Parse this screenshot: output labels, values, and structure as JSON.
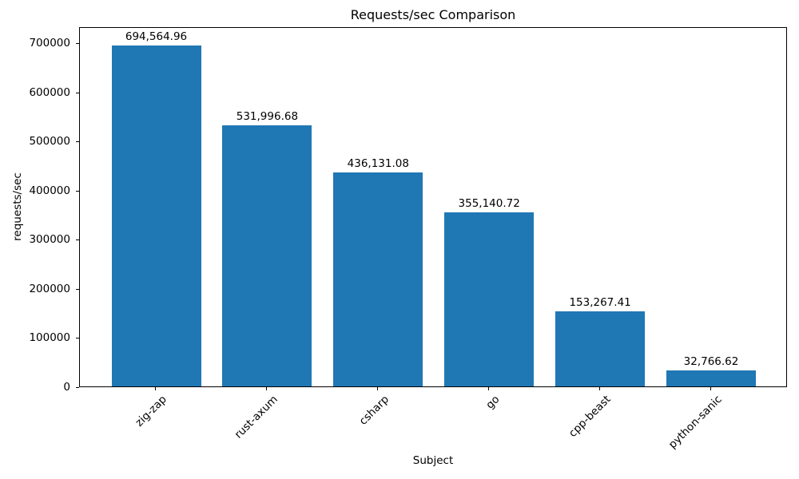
{
  "chart_data": {
    "type": "bar",
    "title": "Requests/sec Comparison",
    "xlabel": "Subject",
    "ylabel": "requests/sec",
    "categories": [
      "zig-zap",
      "rust-axum",
      "csharp",
      "go",
      "cpp-beast",
      "python-sanic"
    ],
    "values": [
      694564.96,
      531996.68,
      436131.08,
      355140.72,
      153267.41,
      32766.62
    ],
    "values_formatted": [
      "694,564.96",
      "531,996.68",
      "436,131.08",
      "355,140.72",
      "153,267.41",
      "32,766.62"
    ],
    "yticks": [
      0,
      100000,
      200000,
      300000,
      400000,
      500000,
      600000,
      700000
    ],
    "ylim": [
      0,
      734000
    ],
    "bar_color": "#1f77b4",
    "grid": false,
    "legend_position": "none"
  }
}
